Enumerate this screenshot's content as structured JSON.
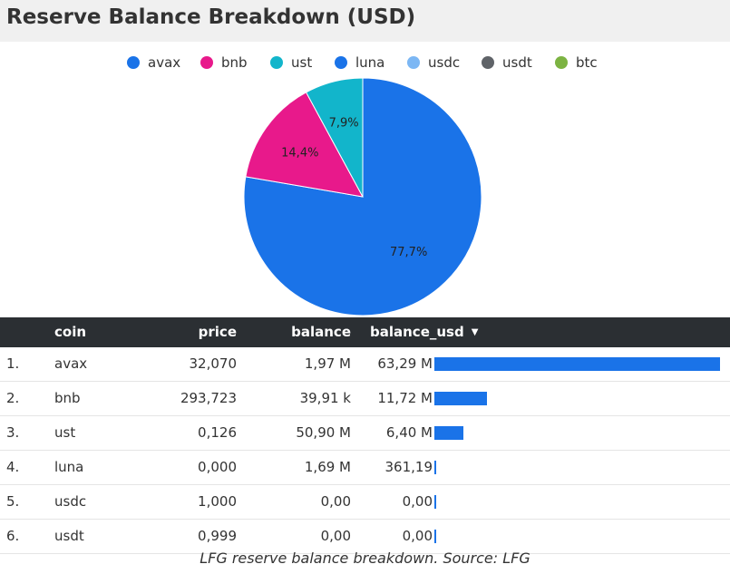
{
  "title": "Reserve Balance Breakdown (USD)",
  "caption": "LFG reserve balance breakdown. Source: LFG",
  "colors": {
    "avax": "#1a73e8",
    "bnb": "#e8198b",
    "ust": "#12b5cb",
    "luna": "#1a73e8",
    "usdc": "#7cb7f4",
    "usdt": "#5f6368",
    "btc": "#7cb342"
  },
  "chart_data": {
    "type": "pie",
    "title": "Reserve Balance Breakdown (USD)",
    "legend": [
      "avax",
      "bnb",
      "ust",
      "luna",
      "usdc",
      "usdt",
      "btc"
    ],
    "slices": [
      {
        "name": "avax",
        "value": 77.7,
        "label": "77,7%"
      },
      {
        "name": "bnb",
        "value": 14.4,
        "label": "14,4%"
      },
      {
        "name": "ust",
        "value": 7.9,
        "label": "7,9%"
      }
    ]
  },
  "table": {
    "columns": [
      "coin",
      "price",
      "balance",
      "balance_usd"
    ],
    "sort_icon": "sort-desc-icon",
    "rows": [
      {
        "index": "1.",
        "coin": "avax",
        "price": "32,070",
        "balance": "1,97 M",
        "balance_usd": "63,29 M",
        "value": 63290000
      },
      {
        "index": "2.",
        "coin": "bnb",
        "price": "293,723",
        "balance": "39,91 k",
        "balance_usd": "11,72 M",
        "value": 11720000
      },
      {
        "index": "3.",
        "coin": "ust",
        "price": "0,126",
        "balance": "50,90 M",
        "balance_usd": "6,40 M",
        "value": 6400000
      },
      {
        "index": "4.",
        "coin": "luna",
        "price": "0,000",
        "balance": "1,69 M",
        "balance_usd": "361,19",
        "value": 361.19
      },
      {
        "index": "5.",
        "coin": "usdc",
        "price": "1,000",
        "balance": "0,00",
        "balance_usd": "0,00",
        "value": 0
      },
      {
        "index": "6.",
        "coin": "usdt",
        "price": "0,999",
        "balance": "0,00",
        "balance_usd": "0,00",
        "value": 0
      }
    ]
  }
}
